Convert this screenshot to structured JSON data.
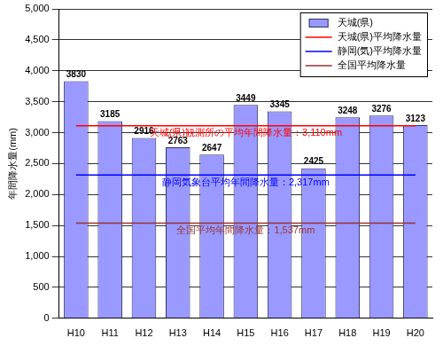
{
  "chart_data": {
    "type": "bar",
    "categories": [
      "H10",
      "H11",
      "H12",
      "H13",
      "H14",
      "H15",
      "H16",
      "H17",
      "H18",
      "H19",
      "H20"
    ],
    "series": [
      {
        "name": "天城(県)",
        "color": "#9999ff",
        "type": "bar",
        "values": [
          3830,
          3185,
          2916,
          2763,
          2647,
          3449,
          3345,
          2425,
          3248,
          3276,
          3123
        ]
      },
      {
        "name": "天城(県)平均降水量",
        "color": "#ff0000",
        "type": "line",
        "values": [
          3110,
          3110,
          3110,
          3110,
          3110,
          3110,
          3110,
          3110,
          3110,
          3110,
          3110
        ]
      },
      {
        "name": "静岡(気)平均降水量",
        "color": "#0000ff",
        "type": "line",
        "values": [
          2317,
          2317,
          2317,
          2317,
          2317,
          2317,
          2317,
          2317,
          2317,
          2317,
          2317
        ]
      },
      {
        "name": "全国平均降水量",
        "color": "#993333",
        "type": "line",
        "values": [
          1537,
          1537,
          1537,
          1537,
          1537,
          1537,
          1537,
          1537,
          1537,
          1537,
          1537
        ]
      }
    ],
    "y_label": "年間降水量(mm)",
    "ylim": [
      0,
      5000
    ],
    "yticks": [
      0,
      500,
      {
        "value": 1000,
        "label": "1,000"
      },
      {
        "value": 1500,
        "label": "1,500"
      },
      {
        "value": 2000,
        "label": "2,000"
      },
      {
        "value": 2500,
        "label": "2,500"
      },
      {
        "value": 3000,
        "label": "3,000"
      },
      {
        "value": 3500,
        "label": "3,500"
      },
      {
        "value": 4000,
        "label": "4,000"
      },
      {
        "value": 4500,
        "label": "4,500"
      },
      {
        "value": 5000,
        "label": "5,000"
      }
    ],
    "grid": true,
    "legend": "upper right",
    "data_labels": true,
    "annotations": [
      {
        "text": "天城(県)観測所の平均年間降水量：3,110mm"
      },
      {
        "text": "静岡気象台平均年間降水量：2,317mm"
      },
      {
        "text": "全国平均年間降水量：1,537mm"
      }
    ]
  }
}
